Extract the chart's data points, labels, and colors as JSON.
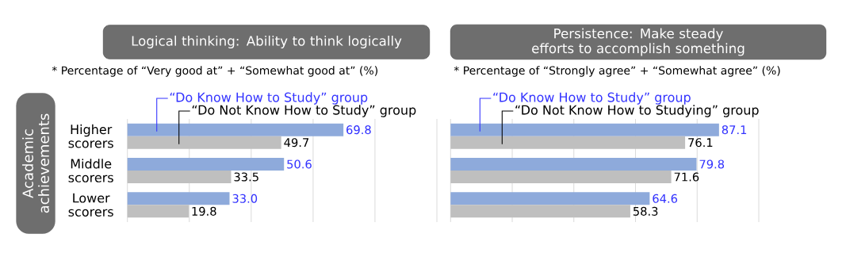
{
  "chart_data": [
    {
      "type": "bar",
      "orientation": "horizontal",
      "title": "Logical thinking: Ability to think logically",
      "subtitle": "* Percentage of “Very good at” + “Somewhat good at” (%)",
      "ylabel": "Academic achievements",
      "categories": [
        "Higher scorers",
        "Middle scorers",
        "Lower scorers"
      ],
      "series": [
        {
          "name": "“Do Know How to Study” group",
          "color": "#8eaadb",
          "values": [
            69.8,
            50.6,
            33.0
          ],
          "value_labels": [
            "69.8",
            "50.6",
            "33.0"
          ]
        },
        {
          "name": "“Do Not Know How to Study” group",
          "color": "#bfbfbf",
          "values": [
            49.7,
            33.5,
            19.8
          ],
          "value_labels": [
            "49.7",
            "33.5",
            "19.8"
          ]
        }
      ],
      "xlim": [
        0,
        100
      ],
      "xticks": [
        {
          "value": 0,
          "label": null
        },
        {
          "value": 20,
          "label": null
        },
        {
          "value": 40,
          "label": null
        },
        {
          "value": 60,
          "label": null
        },
        {
          "value": 80,
          "label": null
        },
        {
          "value": 100,
          "label": null
        }
      ],
      "grid": "x",
      "tick_labels": "y"
    },
    {
      "type": "bar",
      "orientation": "horizontal",
      "title": "Persistence: Make steady efforts to accomplish something",
      "subtitle": "* Percentage of “Strongly agree” + “Somewhat agree” (%)",
      "categories": [
        null,
        null,
        null
      ],
      "series": [
        {
          "name": "“Do Know How to Study” group",
          "color": "#8eaadb",
          "values": [
            87.1,
            79.8,
            64.6
          ],
          "value_labels": [
            "87.1",
            "79.8",
            "64.6"
          ]
        },
        {
          "name": "“Do Not Know How to Studying” group",
          "color": "#bfbfbf",
          "values": [
            76.1,
            71.6,
            58.3
          ],
          "value_labels": [
            "76.1",
            "71.6",
            "58.3"
          ]
        }
      ],
      "xlim": [
        0,
        100
      ],
      "xticks": [
        {
          "value": 0,
          "label": null
        },
        {
          "value": 20,
          "label": null
        },
        {
          "value": 40,
          "label": null
        },
        {
          "value": 60,
          "label": null
        },
        {
          "value": 80,
          "label": null
        },
        {
          "value": 100,
          "label": null
        }
      ],
      "grid": "x"
    }
  ]
}
